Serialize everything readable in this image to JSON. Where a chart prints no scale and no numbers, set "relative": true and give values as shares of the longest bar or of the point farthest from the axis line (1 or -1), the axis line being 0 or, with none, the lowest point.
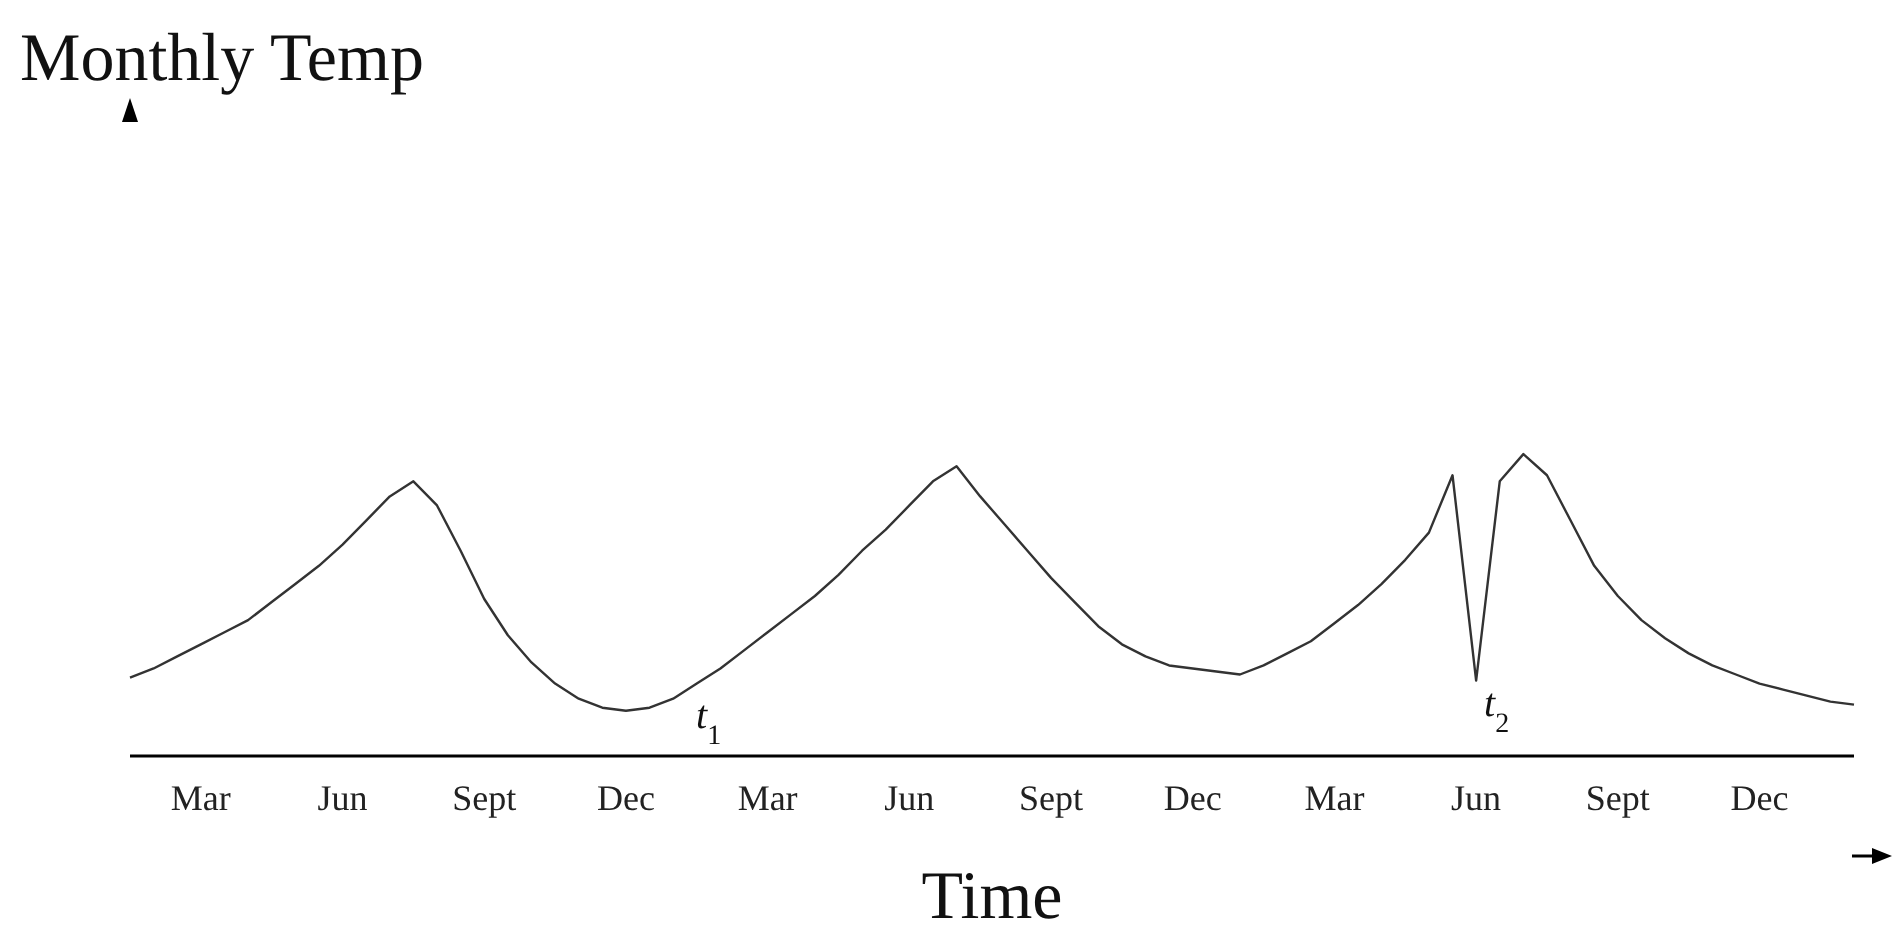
{
  "chart_data": {
    "type": "line",
    "relative": true,
    "xlabel": "Time",
    "categories": [
      null,
      null,
      null,
      "Mar",
      null,
      null,
      null,
      null,
      null,
      "Jun",
      null,
      null,
      null,
      null,
      null,
      "Sept",
      null,
      null,
      null,
      null,
      null,
      "Dec",
      null,
      null,
      null,
      null,
      null,
      "Mar",
      null,
      null,
      null,
      null,
      null,
      "Jun",
      null,
      null,
      null,
      null,
      null,
      "Sept",
      null,
      null,
      null,
      null,
      null,
      "Dec",
      null,
      null,
      null,
      null,
      null,
      "Mar",
      null,
      null,
      null,
      null,
      null,
      "Jun",
      null,
      null,
      null,
      null,
      null,
      "Sept",
      null,
      null,
      null,
      null,
      null,
      "Dec",
      null,
      null,
      null,
      null
    ],
    "series": [
      {
        "color": "#333333",
        "values": [
          0.26,
          0.29,
          0.33,
          0.37,
          0.41,
          0.45,
          0.51,
          0.57,
          0.63,
          0.7,
          0.78,
          0.86,
          0.91,
          0.83,
          0.68,
          0.52,
          0.4,
          0.31,
          0.24,
          0.19,
          0.16,
          0.15,
          0.16,
          0.19,
          0.24,
          0.29,
          0.35,
          0.41,
          0.47,
          0.53,
          0.6,
          0.68,
          0.75,
          0.83,
          0.91,
          0.96,
          0.86,
          0.77,
          0.68,
          0.59,
          0.51,
          0.43,
          0.37,
          0.33,
          0.3,
          0.29,
          0.28,
          0.27,
          0.3,
          0.34,
          0.38,
          0.44,
          0.5,
          0.57,
          0.65,
          0.74,
          0.93,
          0.25,
          0.91,
          1.0,
          0.93,
          0.78,
          0.63,
          0.53,
          0.45,
          0.39,
          0.34,
          0.3,
          0.27,
          0.24,
          0.22,
          0.2,
          0.18,
          0.17
        ]
      }
    ],
    "annotations": [
      "Monthly Temp",
      "t$_{1}$",
      "t$_{2}$"
    ],
    "grid": false,
    "legend": false,
    "marker": "none",
    "line_style": "solid"
  }
}
